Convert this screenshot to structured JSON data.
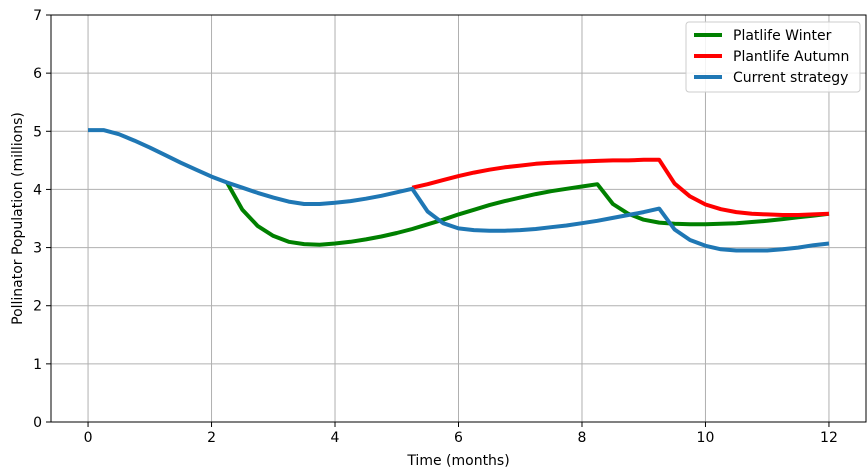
{
  "chart_data": {
    "type": "line",
    "title": "",
    "xlabel": "Time (months)",
    "ylabel": "Pollinator Population (millions)",
    "xlim": [
      -0.6,
      12.6
    ],
    "ylim": [
      0,
      7
    ],
    "xticks": [
      0,
      2,
      4,
      6,
      8,
      10,
      12
    ],
    "yticks": [
      0,
      1,
      2,
      3,
      4,
      5,
      6,
      7
    ],
    "grid": true,
    "legend_position": "top-right",
    "series": [
      {
        "name": "Platlife Winter",
        "color": "#008000",
        "x": [
          2.25,
          2.5,
          2.75,
          3.0,
          3.25,
          3.5,
          3.75,
          4.0,
          4.25,
          4.5,
          4.75,
          5.0,
          5.25,
          5.5,
          5.75,
          6.0,
          6.25,
          6.5,
          6.75,
          7.0,
          7.25,
          7.5,
          7.75,
          8.0,
          8.25,
          8.5,
          8.75,
          9.0,
          9.25,
          9.5,
          9.75,
          10.0,
          10.25,
          10.5,
          10.75,
          11.0,
          11.25,
          11.5,
          11.75,
          12.0
        ],
        "y": [
          4.12,
          3.65,
          3.37,
          3.2,
          3.1,
          3.06,
          3.05,
          3.07,
          3.1,
          3.14,
          3.19,
          3.25,
          3.32,
          3.4,
          3.48,
          3.57,
          3.65,
          3.73,
          3.8,
          3.86,
          3.92,
          3.97,
          4.01,
          4.05,
          4.09,
          3.75,
          3.58,
          3.48,
          3.43,
          3.41,
          3.4,
          3.4,
          3.41,
          3.42,
          3.44,
          3.46,
          3.49,
          3.52,
          3.55,
          3.58
        ]
      },
      {
        "name": "Plantlife Autumn",
        "color": "#ff0000",
        "x": [
          5.25,
          5.5,
          5.75,
          6.0,
          6.25,
          6.5,
          6.75,
          7.0,
          7.25,
          7.5,
          7.75,
          8.0,
          8.25,
          8.5,
          8.75,
          9.0,
          9.25,
          9.5,
          9.75,
          10.0,
          10.25,
          10.5,
          10.75,
          11.0,
          11.25,
          11.5,
          11.75,
          12.0
        ],
        "y": [
          4.03,
          4.09,
          4.16,
          4.23,
          4.29,
          4.34,
          4.38,
          4.41,
          4.44,
          4.46,
          4.47,
          4.48,
          4.49,
          4.5,
          4.5,
          4.51,
          4.51,
          4.1,
          3.88,
          3.74,
          3.66,
          3.61,
          3.58,
          3.57,
          3.56,
          3.56,
          3.57,
          3.58
        ]
      },
      {
        "name": "Current strategy",
        "color": "#1f77b4",
        "x": [
          0.0,
          0.25,
          0.5,
          0.75,
          1.0,
          1.25,
          1.5,
          1.75,
          2.0,
          2.25,
          2.5,
          2.75,
          3.0,
          3.25,
          3.5,
          3.75,
          4.0,
          4.25,
          4.5,
          4.75,
          5.0,
          5.25,
          5.5,
          5.75,
          6.0,
          6.25,
          6.5,
          6.75,
          7.0,
          7.25,
          7.5,
          7.75,
          8.0,
          8.25,
          8.5,
          8.75,
          9.0,
          9.25,
          9.5,
          9.75,
          10.0,
          10.25,
          10.5,
          10.75,
          11.0,
          11.25,
          11.5,
          11.75,
          12.0
        ],
        "y": [
          5.02,
          5.02,
          4.95,
          4.84,
          4.72,
          4.59,
          4.46,
          4.34,
          4.22,
          4.12,
          4.03,
          3.94,
          3.86,
          3.79,
          3.75,
          3.75,
          3.77,
          3.8,
          3.84,
          3.89,
          3.95,
          4.01,
          3.62,
          3.42,
          3.33,
          3.3,
          3.29,
          3.29,
          3.3,
          3.32,
          3.35,
          3.38,
          3.42,
          3.46,
          3.51,
          3.56,
          3.61,
          3.67,
          3.31,
          3.13,
          3.03,
          2.97,
          2.95,
          2.95,
          2.95,
          2.97,
          3.0,
          3.04,
          3.07
        ]
      }
    ]
  }
}
